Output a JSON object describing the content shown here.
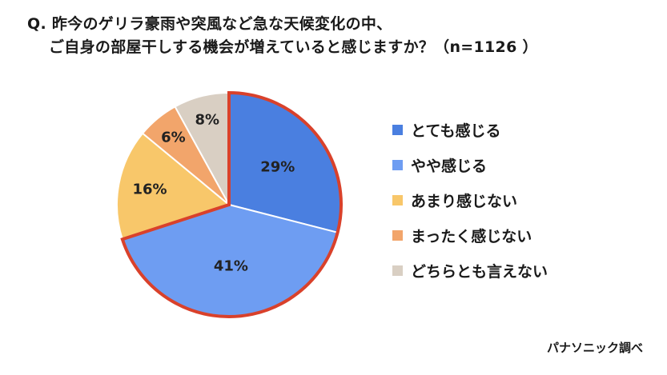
{
  "question": {
    "line1": "Q. 昨今のゲリラ豪雨や突風など急な天候変化の中、",
    "line2": "ご自身の部屋干しする機会が増えていると感じますか？（n=1126 ）"
  },
  "source": "パナソニック調べ",
  "chart_data": {
    "type": "pie",
    "title": "Q. 昨今のゲリラ豪雨や突風など急な天候変化の中、ご自身の部屋干しする機会が増えていると感じますか？（n=1126 ）",
    "legend_position": "right",
    "highlight": {
      "description": "red outline around combined slices",
      "color": "#d9412b",
      "series_indices": [
        0,
        1
      ]
    },
    "slices": [
      {
        "label": "とても感じる",
        "value": 29,
        "value_label": "29%",
        "color": "#4a7fe0"
      },
      {
        "label": "やや感じる",
        "value": 41,
        "value_label": "41%",
        "color": "#6e9df2"
      },
      {
        "label": "あまり感じない",
        "value": 16,
        "value_label": "16%",
        "color": "#f8c76a"
      },
      {
        "label": "まったく感じない",
        "value": 6,
        "value_label": "6%",
        "color": "#f2a56b"
      },
      {
        "label": "どちらとも言えない",
        "value": 8,
        "value_label": "8%",
        "color": "#d9cfc3"
      }
    ]
  }
}
